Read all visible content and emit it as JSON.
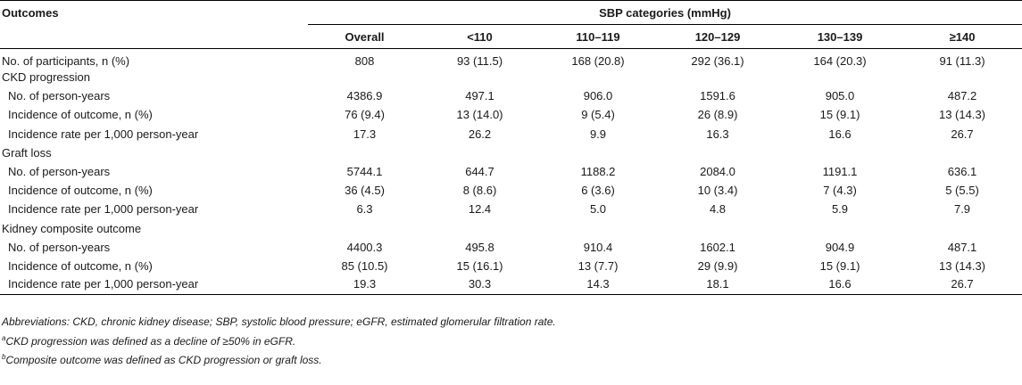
{
  "header": {
    "outcomes_label": "Outcomes",
    "group_label": "SBP categories (mmHg)",
    "columns": [
      "Overall",
      "<110",
      "110–119",
      "120–129",
      "130–139",
      "≥140"
    ]
  },
  "rows": [
    {
      "label": "No. of participants, n (%)",
      "values": [
        "808",
        "93 (11.5)",
        "168 (20.8)",
        "292 (36.1)",
        "164 (20.3)",
        "91 (11.3)"
      ]
    },
    {
      "label": "CKD progression",
      "values": [
        "",
        "",
        "",
        "",
        "",
        ""
      ]
    },
    {
      "label": "No. of person-years",
      "values": [
        "4386.9",
        "497.1",
        "906.0",
        "1591.6",
        "905.0",
        "487.2"
      ]
    },
    {
      "label": "Incidence of outcome, n (%)",
      "values": [
        "76 (9.4)",
        "13 (14.0)",
        "9 (5.4)",
        "26 (8.9)",
        "15 (9.1)",
        "13 (14.3)"
      ]
    },
    {
      "label": "Incidence rate per 1,000 person-year",
      "values": [
        "17.3",
        "26.2",
        "9.9",
        "16.3",
        "16.6",
        "26.7"
      ]
    },
    {
      "label": "Graft loss",
      "values": [
        "",
        "",
        "",
        "",
        "",
        ""
      ]
    },
    {
      "label": "No. of person-years",
      "values": [
        "5744.1",
        "644.7",
        "1188.2",
        "2084.0",
        "1191.1",
        "636.1"
      ]
    },
    {
      "label": "Incidence of outcome, n (%)",
      "values": [
        "36 (4.5)",
        "8 (8.6)",
        "6 (3.6)",
        "10 (3.4)",
        "7 (4.3)",
        "5 (5.5)"
      ]
    },
    {
      "label": "Incidence rate per 1,000 person-year",
      "values": [
        "6.3",
        "12.4",
        "5.0",
        "4.8",
        "5.9",
        "7.9"
      ]
    },
    {
      "label": "Kidney composite outcome",
      "values": [
        "",
        "",
        "",
        "",
        "",
        ""
      ]
    },
    {
      "label": "No. of person-years",
      "values": [
        "4400.3",
        "495.8",
        "910.4",
        "1602.1",
        "904.9",
        "487.1"
      ]
    },
    {
      "label": "Incidence of outcome, n (%)",
      "values": [
        "85 (10.5)",
        "15 (16.1)",
        "13 (7.7)",
        "29 (9.9)",
        "15 (9.1)",
        "13 (14.3)"
      ]
    },
    {
      "label": "Incidence rate per 1,000 person-year",
      "values": [
        "19.3",
        "30.3",
        "14.3",
        "18.1",
        "16.6",
        "26.7"
      ]
    }
  ],
  "footnotes": {
    "abbreviations": "Abbreviations: CKD, chronic kidney disease; SBP, systolic blood pressure; eGFR, estimated glomerular filtration rate.",
    "a_marker": "a",
    "a_text": "CKD progression was defined as a decline of ≥50% in eGFR.",
    "b_marker": "b",
    "b_text": "Composite outcome was defined as CKD progression or graft loss."
  }
}
